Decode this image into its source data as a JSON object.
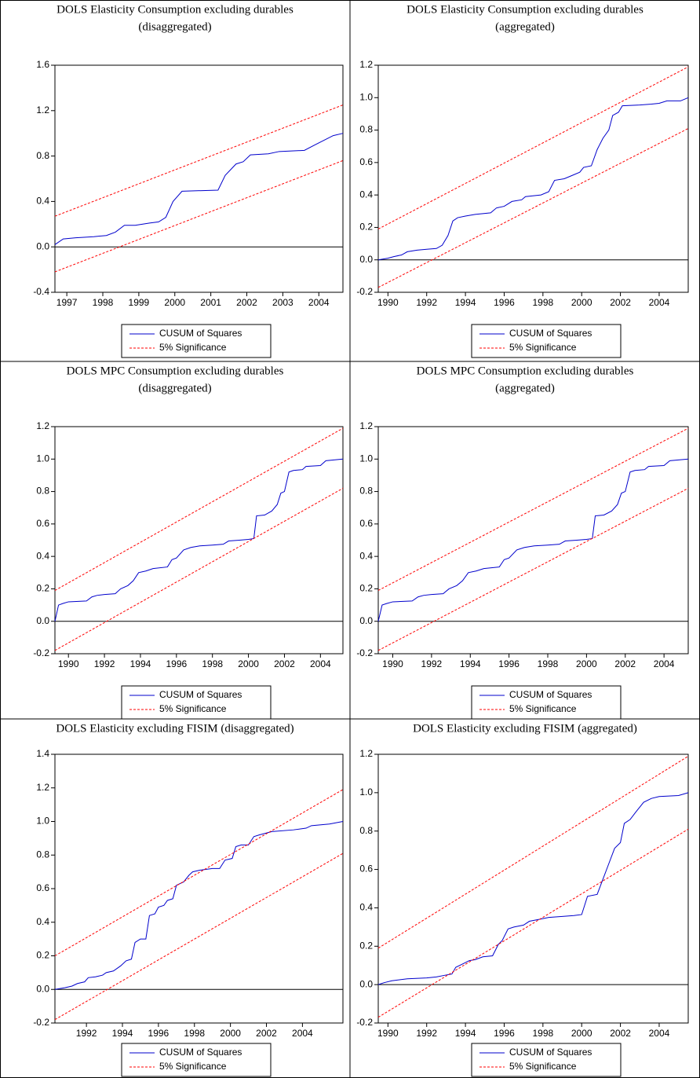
{
  "chart_data": [
    {
      "type": "line",
      "title": [
        "DOLS Elasticity Consumption excluding durables",
        "(disaggregated)"
      ],
      "xlim": [
        1996.67,
        2004.67
      ],
      "xticks": [
        1997,
        1998,
        1999,
        2000,
        2001,
        2002,
        2003,
        2004
      ],
      "ylim": [
        -0.4,
        1.6
      ],
      "yticks": [
        -0.4,
        {
          "value": 0,
          "label": "0.0"
        },
        0.4,
        0.8,
        1.2,
        1.6
      ],
      "zero_line": true,
      "series": [
        {
          "name": "CUSUM of Squares",
          "color": "#0000cc",
          "x": [
            1996.67,
            1996.9,
            1997.25,
            1997.75,
            1998.1,
            1998.35,
            1998.6,
            1998.9,
            1999.3,
            1999.55,
            1999.75,
            1999.95,
            2000.2,
            2001.2,
            2001.4,
            2001.7,
            2001.9,
            2002.1,
            2002.6,
            2002.9,
            2003.6,
            2003.9,
            2004.4,
            2004.67
          ],
          "values": [
            0.02,
            0.07,
            0.08,
            0.09,
            0.1,
            0.13,
            0.19,
            0.19,
            0.21,
            0.22,
            0.26,
            0.4,
            0.49,
            0.5,
            0.63,
            0.73,
            0.75,
            0.81,
            0.82,
            0.84,
            0.85,
            0.9,
            0.98,
            1.0
          ]
        },
        {
          "name": "5% Significance",
          "color": "#ff0000",
          "dashed": true,
          "x": [
            1996.67,
            2004.67
          ],
          "upper": [
            0.27,
            1.25
          ],
          "lower": [
            -0.22,
            0.76
          ]
        }
      ]
    },
    {
      "type": "line",
      "title": [
        "DOLS Elasticity Consumption excluding durables",
        "(aggregated)"
      ],
      "xlim": [
        1989.5,
        2005.5
      ],
      "xticks": [
        1990,
        1992,
        1994,
        1996,
        1998,
        2000,
        2002,
        2004
      ],
      "ylim": [
        -0.2,
        1.2
      ],
      "yticks": [
        -0.2,
        {
          "value": 0,
          "label": "0.0"
        },
        0.2,
        0.4,
        0.6,
        0.8,
        {
          "value": 1,
          "label": "1.0"
        },
        1.2
      ],
      "zero_line": true,
      "series": [
        {
          "name": "CUSUM of Squares",
          "color": "#0000cc",
          "x": [
            1989.5,
            1990.0,
            1990.3,
            1990.7,
            1991.0,
            1991.5,
            1992.0,
            1992.5,
            1992.8,
            1993.1,
            1993.35,
            1993.6,
            1994.0,
            1994.5,
            1995.3,
            1995.6,
            1996.0,
            1996.4,
            1996.9,
            1997.1,
            1997.9,
            1998.3,
            1998.6,
            1999.1,
            1999.5,
            1999.9,
            2000.1,
            2000.5,
            2000.8,
            2001.1,
            2001.4,
            2001.6,
            2001.9,
            2002.1,
            2003.0,
            2003.6,
            2004.0,
            2004.4,
            2005.1,
            2005.5
          ],
          "values": [
            0.0,
            0.01,
            0.02,
            0.03,
            0.05,
            0.06,
            0.065,
            0.07,
            0.09,
            0.15,
            0.24,
            0.26,
            0.27,
            0.28,
            0.29,
            0.32,
            0.33,
            0.36,
            0.37,
            0.39,
            0.4,
            0.42,
            0.49,
            0.5,
            0.52,
            0.54,
            0.57,
            0.58,
            0.68,
            0.75,
            0.8,
            0.89,
            0.91,
            0.95,
            0.955,
            0.96,
            0.965,
            0.98,
            0.98,
            1.0
          ]
        },
        {
          "name": "5% Significance",
          "color": "#ff0000",
          "dashed": true,
          "x": [
            1989.5,
            2005.5
          ],
          "upper": [
            0.19,
            1.19
          ],
          "lower": [
            -0.17,
            0.81
          ]
        }
      ]
    },
    {
      "type": "line",
      "title": [
        "DOLS MPC Consumption excluding durables",
        "(disaggregated)"
      ],
      "xlim": [
        1989.25,
        2005.25
      ],
      "xticks": [
        1990,
        1992,
        1994,
        1996,
        1998,
        2000,
        2002,
        2004
      ],
      "ylim": [
        -0.2,
        1.2
      ],
      "yticks": [
        -0.2,
        {
          "value": 0,
          "label": "0.0"
        },
        0.2,
        0.4,
        0.6,
        0.8,
        {
          "value": 1,
          "label": "1.0"
        },
        1.2
      ],
      "zero_line": true,
      "series": [
        {
          "name": "CUSUM of Squares",
          "color": "#0000cc",
          "x": [
            1989.25,
            1989.45,
            1989.7,
            1990.0,
            1991.0,
            1991.3,
            1991.6,
            1992.0,
            1992.6,
            1992.9,
            1993.3,
            1993.6,
            1993.9,
            1994.3,
            1994.7,
            1995.5,
            1995.75,
            1996.0,
            1996.4,
            1996.8,
            1997.3,
            1998.0,
            1998.6,
            1998.9,
            1999.5,
            2000.0,
            2000.3,
            2000.45,
            2000.9,
            2001.3,
            2001.6,
            2001.8,
            2002.0,
            2002.25,
            2002.5,
            2003.0,
            2003.2,
            2004.0,
            2004.3,
            2005.25
          ],
          "values": [
            0.0,
            0.1,
            0.11,
            0.12,
            0.125,
            0.15,
            0.16,
            0.165,
            0.17,
            0.2,
            0.22,
            0.25,
            0.3,
            0.31,
            0.325,
            0.335,
            0.38,
            0.39,
            0.44,
            0.455,
            0.465,
            0.47,
            0.475,
            0.495,
            0.5,
            0.505,
            0.51,
            0.65,
            0.655,
            0.68,
            0.72,
            0.79,
            0.8,
            0.92,
            0.93,
            0.935,
            0.955,
            0.96,
            0.99,
            1.0
          ]
        },
        {
          "name": "5% Significance",
          "color": "#ff0000",
          "dashed": true,
          "x": [
            1989.25,
            2005.25
          ],
          "upper": [
            0.19,
            1.19
          ],
          "lower": [
            -0.18,
            0.82
          ]
        }
      ]
    },
    {
      "type": "line",
      "title": [
        "DOLS MPC Consumption excluding durables",
        "(aggregated)"
      ],
      "xlim": [
        1989.25,
        2005.25
      ],
      "xticks": [
        1990,
        1992,
        1994,
        1996,
        1998,
        2000,
        2002,
        2004
      ],
      "ylim": [
        -0.2,
        1.2
      ],
      "yticks": [
        -0.2,
        {
          "value": 0,
          "label": "0.0"
        },
        0.2,
        0.4,
        0.6,
        0.8,
        {
          "value": 1,
          "label": "1.0"
        },
        1.2
      ],
      "zero_line": true,
      "series": [
        {
          "name": "CUSUM of Squares",
          "color": "#0000cc",
          "x": [
            1989.25,
            1989.45,
            1989.7,
            1990.0,
            1991.0,
            1991.3,
            1991.6,
            1992.0,
            1992.6,
            1992.9,
            1993.3,
            1993.6,
            1993.9,
            1994.3,
            1994.7,
            1995.5,
            1995.75,
            1996.0,
            1996.4,
            1996.8,
            1997.3,
            1998.0,
            1998.6,
            1998.9,
            1999.5,
            2000.0,
            2000.3,
            2000.45,
            2000.9,
            2001.3,
            2001.6,
            2001.8,
            2002.0,
            2002.25,
            2002.5,
            2003.0,
            2003.2,
            2004.0,
            2004.3,
            2005.25
          ],
          "values": [
            0.0,
            0.1,
            0.11,
            0.12,
            0.125,
            0.15,
            0.16,
            0.165,
            0.17,
            0.2,
            0.22,
            0.25,
            0.3,
            0.31,
            0.325,
            0.335,
            0.38,
            0.39,
            0.44,
            0.455,
            0.465,
            0.47,
            0.475,
            0.495,
            0.5,
            0.505,
            0.51,
            0.65,
            0.655,
            0.68,
            0.72,
            0.79,
            0.8,
            0.92,
            0.93,
            0.935,
            0.955,
            0.96,
            0.99,
            1.0
          ]
        },
        {
          "name": "5% Significance",
          "color": "#ff0000",
          "dashed": true,
          "x": [
            1989.25,
            2005.25
          ],
          "upper": [
            0.19,
            1.19
          ],
          "lower": [
            -0.18,
            0.82
          ]
        }
      ]
    },
    {
      "type": "line",
      "title": [
        "DOLS Elasticity excluding FISIM (disaggregated)"
      ],
      "xlim": [
        1990.25,
        2006.25
      ],
      "xticks": [
        1992,
        1994,
        1996,
        1998,
        2000,
        2002,
        2004
      ],
      "ylim": [
        -0.2,
        1.4
      ],
      "yticks": [
        -0.2,
        {
          "value": 0,
          "label": "0.0"
        },
        0.2,
        0.4,
        0.6,
        0.8,
        {
          "value": 1,
          "label": "1.0"
        },
        1.2,
        1.4
      ],
      "zero_line": true,
      "series": [
        {
          "name": "CUSUM of Squares",
          "color": "#0000cc",
          "x": [
            1990.25,
            1990.8,
            1991.2,
            1991.5,
            1991.9,
            1992.1,
            1992.5,
            1992.9,
            1993.1,
            1993.5,
            1993.9,
            1994.2,
            1994.5,
            1994.7,
            1995.0,
            1995.3,
            1995.5,
            1995.8,
            1996.0,
            1996.3,
            1996.5,
            1996.8,
            1997.0,
            1997.4,
            1997.7,
            1997.9,
            1998.3,
            1999.0,
            1999.4,
            1999.7,
            2000.1,
            2000.3,
            2000.6,
            2001.0,
            2001.3,
            2001.6,
            2002.3,
            2003.5,
            2004.2,
            2004.5,
            2005.5,
            2006.25
          ],
          "values": [
            0.0,
            0.01,
            0.02,
            0.035,
            0.045,
            0.07,
            0.075,
            0.085,
            0.1,
            0.11,
            0.14,
            0.17,
            0.18,
            0.28,
            0.3,
            0.3,
            0.44,
            0.45,
            0.49,
            0.5,
            0.53,
            0.54,
            0.62,
            0.64,
            0.68,
            0.7,
            0.71,
            0.72,
            0.72,
            0.77,
            0.78,
            0.85,
            0.86,
            0.86,
            0.91,
            0.92,
            0.94,
            0.95,
            0.96,
            0.975,
            0.985,
            1.0
          ]
        },
        {
          "name": "5% Significance",
          "color": "#ff0000",
          "dashed": true,
          "x": [
            1990.25,
            2006.25
          ],
          "upper": [
            0.2,
            1.19
          ],
          "lower": [
            -0.18,
            0.81
          ]
        }
      ]
    },
    {
      "type": "line",
      "title": [
        "DOLS Elasticity excluding FISIM (aggregated)"
      ],
      "xlim": [
        1989.5,
        2005.5
      ],
      "xticks": [
        1990,
        1992,
        1994,
        1996,
        1998,
        2000,
        2002,
        2004
      ],
      "ylim": [
        -0.2,
        1.2
      ],
      "yticks": [
        -0.2,
        {
          "value": 0,
          "label": "0.0"
        },
        0.2,
        0.4,
        0.6,
        0.8,
        {
          "value": 1,
          "label": "1.0"
        },
        1.2
      ],
      "zero_line": true,
      "series": [
        {
          "name": "CUSUM of Squares",
          "color": "#0000cc",
          "x": [
            1989.5,
            1989.8,
            1990.2,
            1991.0,
            1992.0,
            1992.5,
            1993.0,
            1993.3,
            1993.5,
            1993.9,
            1994.2,
            1994.5,
            1994.9,
            1995.4,
            1995.7,
            1995.9,
            1996.2,
            1996.5,
            1997.0,
            1997.3,
            1997.8,
            1998.3,
            1999.0,
            1999.6,
            2000.0,
            2000.3,
            2000.8,
            2001.1,
            2001.4,
            2001.7,
            2002.0,
            2002.2,
            2002.5,
            2002.8,
            2003.2,
            2003.6,
            2004.0,
            2005.0,
            2005.5
          ],
          "values": [
            0.0,
            0.01,
            0.02,
            0.03,
            0.035,
            0.04,
            0.05,
            0.055,
            0.09,
            0.11,
            0.125,
            0.13,
            0.145,
            0.15,
            0.21,
            0.23,
            0.29,
            0.3,
            0.31,
            0.33,
            0.34,
            0.35,
            0.355,
            0.36,
            0.365,
            0.46,
            0.47,
            0.55,
            0.63,
            0.71,
            0.74,
            0.84,
            0.86,
            0.9,
            0.95,
            0.97,
            0.98,
            0.985,
            1.0
          ]
        },
        {
          "name": "5% Significance",
          "color": "#ff0000",
          "dashed": true,
          "x": [
            1989.5,
            2005.5
          ],
          "upper": [
            0.19,
            1.19
          ],
          "lower": [
            -0.17,
            0.81
          ]
        }
      ]
    }
  ]
}
